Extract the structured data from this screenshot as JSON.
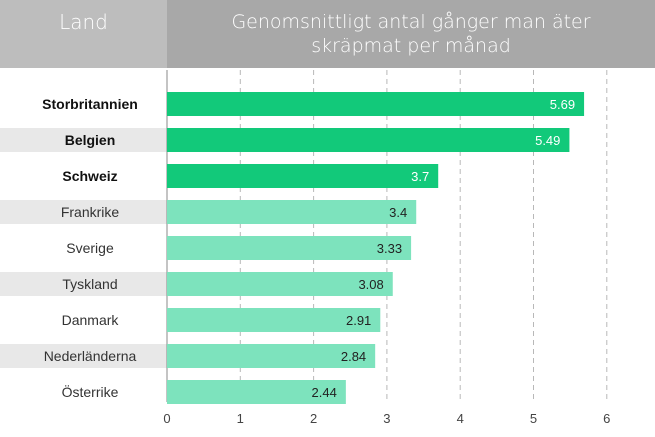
{
  "header": {
    "left_label": "Land",
    "right_label": "Genomsnittligt antal gånger man äter skräpmat per månad"
  },
  "colors": {
    "highlight": "#12c97a",
    "normal": "#7de3bd",
    "header_left": "#bdbdbd",
    "header_right": "#a8a8a8",
    "row_band": "#e8e8e8"
  },
  "chart_data": {
    "type": "bar",
    "orientation": "horizontal",
    "title": "Genomsnittligt antal gånger man äter skräpmat per månad",
    "xlabel": "",
    "ylabel": "Land",
    "categories": [
      "Storbritannien",
      "Belgien",
      "Schweiz",
      "Frankrike",
      "Sverige",
      "Tyskland",
      "Danmark",
      "Nederländerna",
      "Österrike"
    ],
    "values": [
      5.69,
      5.49,
      3.7,
      3.4,
      3.33,
      3.08,
      2.91,
      2.84,
      2.44
    ],
    "value_labels": [
      "5.69",
      "5.49",
      "3.7",
      "3.4",
      "3.33",
      "3.08",
      "2.91",
      "2.84",
      "2.44"
    ],
    "highlighted": [
      true,
      true,
      true,
      false,
      false,
      false,
      false,
      false,
      false
    ],
    "xlim": [
      0,
      6
    ],
    "xticks": [
      0,
      1,
      2,
      3,
      4,
      5,
      6
    ],
    "grid": true
  }
}
